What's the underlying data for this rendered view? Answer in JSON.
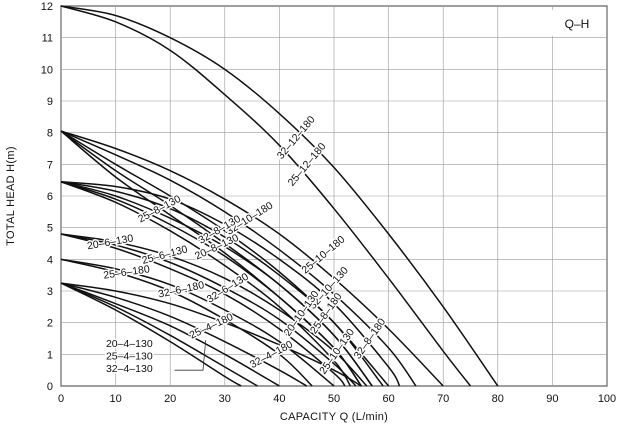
{
  "chart_data": {
    "type": "line",
    "title": "Q–H",
    "xlabel": "CAPACITY  Q (L/min)",
    "ylabel": "TOTAL HEAD  H(m)",
    "xlim": [
      0,
      100
    ],
    "ylim": [
      0,
      12
    ],
    "x_ticks": [
      "0",
      "10",
      "20",
      "30",
      "40",
      "50",
      "60",
      "70",
      "80",
      "90",
      "100"
    ],
    "y_ticks": [
      "0",
      "1",
      "2",
      "3",
      "4",
      "5",
      "6",
      "7",
      "8",
      "9",
      "10",
      "11",
      "12"
    ],
    "grid": true,
    "series": [
      {
        "name": "32–12–180",
        "x": [
          0,
          10,
          20,
          30,
          40,
          50,
          60,
          70,
          80
        ],
        "y": [
          12,
          11.7,
          11.0,
          10.0,
          8.6,
          6.9,
          4.8,
          2.5,
          0
        ]
      },
      {
        "name": "25–12–180",
        "x": [
          0,
          10,
          20,
          30,
          40,
          50,
          60,
          70,
          75
        ],
        "y": [
          12,
          11.5,
          10.6,
          9.2,
          7.6,
          5.6,
          3.4,
          1.1,
          0
        ]
      },
      {
        "name": "32–10–180",
        "x": [
          0,
          10,
          20,
          30,
          40,
          50,
          60,
          70
        ],
        "y": [
          8.05,
          7.5,
          6.8,
          5.9,
          4.8,
          3.4,
          1.8,
          0
        ]
      },
      {
        "name": "25–10–180",
        "x": [
          0,
          10,
          20,
          30,
          40,
          50,
          60,
          65
        ],
        "y": [
          8.05,
          7.3,
          6.5,
          5.5,
          4.3,
          2.9,
          1.2,
          0
        ]
      },
      {
        "name": "32–8–180",
        "x": [
          0,
          10,
          20,
          30,
          40,
          50,
          60,
          62
        ],
        "y": [
          6.45,
          6.3,
          5.9,
          5.1,
          4.0,
          2.6,
          0.6,
          0
        ]
      },
      {
        "name": "25–8–180",
        "x": [
          0,
          10,
          20,
          30,
          40,
          50,
          59
        ],
        "y": [
          6.45,
          6.15,
          5.6,
          4.7,
          3.5,
          2.0,
          0
        ]
      },
      {
        "name": "32–10–130",
        "x": [
          0,
          10,
          20,
          30,
          40,
          50,
          60
        ],
        "y": [
          8.05,
          7.0,
          6.0,
          4.9,
          3.6,
          2.0,
          0
        ]
      },
      {
        "name": "25–10–130",
        "x": [
          0,
          10,
          20,
          30,
          40,
          50,
          57
        ],
        "y": [
          8.05,
          6.8,
          5.7,
          4.5,
          3.2,
          1.6,
          0
        ]
      },
      {
        "name": "20–10–130",
        "x": [
          0,
          10,
          20,
          30,
          40,
          50,
          55
        ],
        "y": [
          8.05,
          6.6,
          5.4,
          4.2,
          2.8,
          1.2,
          0
        ]
      },
      {
        "name": "32–8–130",
        "x": [
          0,
          10,
          20,
          30,
          40,
          50,
          57
        ],
        "y": [
          6.45,
          6.0,
          5.3,
          4.4,
          3.2,
          1.6,
          0
        ]
      },
      {
        "name": "25–8–130",
        "x": [
          0,
          10,
          20,
          30,
          40,
          50,
          55
        ],
        "y": [
          6.45,
          5.9,
          5.1,
          4.1,
          2.8,
          1.2,
          0
        ]
      },
      {
        "name": "20–8–130",
        "x": [
          0,
          10,
          20,
          30,
          40,
          50,
          53
        ],
        "y": [
          6.45,
          5.8,
          4.9,
          3.8,
          2.5,
          0.8,
          0
        ]
      },
      {
        "name": "32–6–130",
        "x": [
          0,
          10,
          20,
          30,
          40,
          50,
          56
        ],
        "y": [
          4.8,
          4.55,
          4.1,
          3.4,
          2.4,
          1.1,
          0
        ]
      },
      {
        "name": "25–6–130",
        "x": [
          0,
          10,
          20,
          30,
          40,
          50,
          54
        ],
        "y": [
          4.8,
          4.45,
          3.9,
          3.1,
          2.1,
          0.7,
          0
        ]
      },
      {
        "name": "20–6–130",
        "x": [
          0,
          10,
          20,
          30,
          40,
          50,
          52
        ],
        "y": [
          4.8,
          4.35,
          3.7,
          2.9,
          1.8,
          0.4,
          0
        ]
      },
      {
        "name": "32–6–180",
        "x": [
          0,
          10,
          20,
          30,
          40,
          50
        ],
        "y": [
          4.0,
          3.7,
          3.2,
          2.4,
          1.4,
          0
        ]
      },
      {
        "name": "25–6–180",
        "x": [
          0,
          10,
          20,
          30,
          40,
          46
        ],
        "y": [
          4.0,
          3.6,
          3.0,
          2.1,
          1.0,
          0
        ]
      },
      {
        "name": "32–4–180",
        "x": [
          0,
          10,
          20,
          30,
          40,
          50,
          55
        ],
        "y": [
          3.25,
          3.0,
          2.6,
          2.0,
          1.3,
          0.5,
          0
        ]
      },
      {
        "name": "25–4–180",
        "x": [
          0,
          10,
          20,
          30,
          40,
          45
        ],
        "y": [
          3.25,
          2.8,
          2.2,
          1.4,
          0.5,
          0
        ]
      },
      {
        "name": "32–4–130",
        "x": [
          0,
          10,
          20,
          30,
          40
        ],
        "y": [
          3.25,
          2.6,
          1.9,
          1.0,
          0
        ]
      },
      {
        "name": "25–4–130",
        "x": [
          0,
          10,
          20,
          30,
          36
        ],
        "y": [
          3.25,
          2.5,
          1.6,
          0.6,
          0
        ]
      },
      {
        "name": "20–4–130",
        "x": [
          0,
          10,
          20,
          30,
          33
        ],
        "y": [
          3.25,
          2.4,
          1.4,
          0.3,
          0
        ]
      }
    ],
    "labels": [
      {
        "text": "32–12–180",
        "x": 43,
        "y": 7.85,
        "angle": -50
      },
      {
        "text": "25–12–180",
        "x": 45,
        "y": 7.0,
        "angle": -50
      },
      {
        "text": "32–10–180",
        "x": 34.5,
        "y": 5.3,
        "angle": -32
      },
      {
        "text": "25–10–180",
        "x": 48,
        "y": 4.15,
        "angle": -40
      },
      {
        "text": "32–10–130",
        "x": 49,
        "y": 3.1,
        "angle": -48
      },
      {
        "text": "32–8–180",
        "x": 56.5,
        "y": 1.5,
        "angle": -55
      },
      {
        "text": "25–8–180",
        "x": 48.5,
        "y": 2.3,
        "angle": -55
      },
      {
        "text": "20–10–130",
        "x": 44,
        "y": 2.3,
        "angle": -55
      },
      {
        "text": "25–10–130",
        "x": 50.5,
        "y": 1.1,
        "angle": -55
      },
      {
        "text": "25–8–130",
        "x": 18,
        "y": 5.6,
        "angle": -28
      },
      {
        "text": "32–8–130",
        "x": 29,
        "y": 4.95,
        "angle": -30
      },
      {
        "text": "20–8–130",
        "x": 28.5,
        "y": 4.4,
        "angle": -25
      },
      {
        "text": "20–6–130",
        "x": 9,
        "y": 4.55,
        "angle": -10
      },
      {
        "text": "25–6–130",
        "x": 19,
        "y": 4.15,
        "angle": -15
      },
      {
        "text": "25–6–180",
        "x": 12,
        "y": 3.6,
        "angle": -8
      },
      {
        "text": "32–6–180",
        "x": 22,
        "y": 3.05,
        "angle": -12
      },
      {
        "text": "32–6–130",
        "x": 30.5,
        "y": 3.1,
        "angle": -32
      },
      {
        "text": "25–4–180",
        "x": 27.5,
        "y": 1.9,
        "angle": -25
      },
      {
        "text": "32–4–180",
        "x": 38.5,
        "y": 1.0,
        "angle": -28
      },
      {
        "text": "20–4–130",
        "x": 12.5,
        "y": 1.35,
        "angle": 0
      },
      {
        "text": "25–4–130",
        "x": 12.5,
        "y": 0.95,
        "angle": 0
      },
      {
        "text": "32–4–130",
        "x": 12.5,
        "y": 0.55,
        "angle": 0
      }
    ],
    "leader": {
      "from": [
        26,
        0.5
      ],
      "to": [
        26.5,
        1.45
      ],
      "tail": [
        20.8,
        0.5
      ]
    },
    "legend": "top-right"
  }
}
